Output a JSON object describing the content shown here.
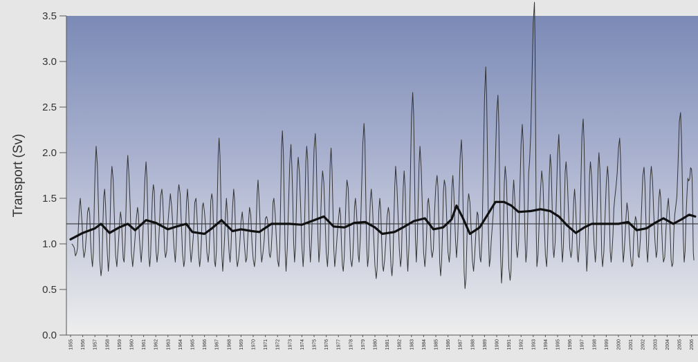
{
  "chart_data": {
    "type": "line",
    "title": "",
    "xlabel": "",
    "ylabel": "Transport (Sv)",
    "ylim": [
      0,
      3.5
    ],
    "y_ticks": [
      "0.0",
      "0.5",
      "1.0",
      "1.5",
      "2.0",
      "2.5",
      "3.0",
      "3.5"
    ],
    "y_tick_values": [
      0,
      0.5,
      1.0,
      1.5,
      2.0,
      2.5,
      3.0,
      3.5
    ],
    "x_ticks": [
      "1955",
      "1956",
      "1957",
      "1958",
      "1959",
      "1960",
      "1961",
      "1962",
      "1963",
      "1964",
      "1965",
      "1966",
      "1967",
      "1968",
      "1969",
      "1970",
      "1971",
      "1972",
      "1973",
      "1974",
      "1975",
      "1976",
      "1977",
      "1978",
      "1979",
      "1980",
      "1981",
      "1982",
      "1983",
      "1984",
      "1985",
      "1986",
      "1987",
      "1988",
      "1989",
      "1990",
      "1991",
      "1992",
      "1993",
      "1994",
      "1995",
      "1996",
      "1997",
      "1998",
      "1999",
      "2000",
      "2001",
      "2002",
      "2003",
      "2004",
      "2005",
      "2006"
    ],
    "xlim": [
      1955,
      2006
    ],
    "grid": false,
    "background": {
      "top_color": "#7b8ab6",
      "bottom_color": "#eeeeee"
    },
    "mean_line": {
      "value": 1.22,
      "color": "#222222"
    },
    "series": [
      {
        "style": "thin",
        "color": "#333333",
        "peaks": [
          {
            "x": 1955.1,
            "y": 1.0
          },
          {
            "x": 1955.5,
            "y": 0.9
          },
          {
            "x": 1955.8,
            "y": 1.5
          },
          {
            "x": 1956.1,
            "y": 0.85
          },
          {
            "x": 1956.5,
            "y": 1.4
          },
          {
            "x": 1956.8,
            "y": 0.75
          },
          {
            "x": 1957.1,
            "y": 2.07
          },
          {
            "x": 1957.5,
            "y": 0.65
          },
          {
            "x": 1957.8,
            "y": 1.6
          },
          {
            "x": 1958.1,
            "y": 0.7
          },
          {
            "x": 1958.4,
            "y": 1.85
          },
          {
            "x": 1958.8,
            "y": 0.75
          },
          {
            "x": 1959.1,
            "y": 1.35
          },
          {
            "x": 1959.4,
            "y": 0.8
          },
          {
            "x": 1959.7,
            "y": 1.97
          },
          {
            "x": 1960.1,
            "y": 0.75
          },
          {
            "x": 1960.5,
            "y": 1.4
          },
          {
            "x": 1960.8,
            "y": 0.8
          },
          {
            "x": 1961.2,
            "y": 1.9
          },
          {
            "x": 1961.5,
            "y": 0.75
          },
          {
            "x": 1961.8,
            "y": 1.65
          },
          {
            "x": 1962.1,
            "y": 0.8
          },
          {
            "x": 1962.5,
            "y": 1.6
          },
          {
            "x": 1962.8,
            "y": 0.85
          },
          {
            "x": 1963.2,
            "y": 1.55
          },
          {
            "x": 1963.6,
            "y": 0.8
          },
          {
            "x": 1963.9,
            "y": 1.65
          },
          {
            "x": 1964.3,
            "y": 0.75
          },
          {
            "x": 1964.6,
            "y": 1.6
          },
          {
            "x": 1964.9,
            "y": 0.8
          },
          {
            "x": 1965.3,
            "y": 1.5
          },
          {
            "x": 1965.6,
            "y": 0.75
          },
          {
            "x": 1965.9,
            "y": 1.45
          },
          {
            "x": 1966.3,
            "y": 0.8
          },
          {
            "x": 1966.6,
            "y": 1.55
          },
          {
            "x": 1966.9,
            "y": 0.75
          },
          {
            "x": 1967.2,
            "y": 2.16
          },
          {
            "x": 1967.5,
            "y": 0.7
          },
          {
            "x": 1967.8,
            "y": 1.5
          },
          {
            "x": 1968.1,
            "y": 0.8
          },
          {
            "x": 1968.4,
            "y": 1.6
          },
          {
            "x": 1968.7,
            "y": 0.75
          },
          {
            "x": 1969.1,
            "y": 1.35
          },
          {
            "x": 1969.4,
            "y": 0.8
          },
          {
            "x": 1969.7,
            "y": 1.4
          },
          {
            "x": 1970.1,
            "y": 0.75
          },
          {
            "x": 1970.4,
            "y": 1.7
          },
          {
            "x": 1970.7,
            "y": 0.8
          },
          {
            "x": 1971.1,
            "y": 1.3
          },
          {
            "x": 1971.4,
            "y": 0.85
          },
          {
            "x": 1971.7,
            "y": 1.5
          },
          {
            "x": 1972.1,
            "y": 0.75
          },
          {
            "x": 1972.4,
            "y": 2.24
          },
          {
            "x": 1972.7,
            "y": 0.7
          },
          {
            "x": 1973.1,
            "y": 2.09
          },
          {
            "x": 1973.4,
            "y": 0.8
          },
          {
            "x": 1973.7,
            "y": 1.95
          },
          {
            "x": 1974.1,
            "y": 0.75
          },
          {
            "x": 1974.4,
            "y": 2.07
          },
          {
            "x": 1974.7,
            "y": 0.8
          },
          {
            "x": 1975.1,
            "y": 2.21
          },
          {
            "x": 1975.4,
            "y": 0.8
          },
          {
            "x": 1975.7,
            "y": 1.8
          },
          {
            "x": 1976.1,
            "y": 0.75
          },
          {
            "x": 1976.4,
            "y": 2.05
          },
          {
            "x": 1976.7,
            "y": 0.75
          },
          {
            "x": 1977.1,
            "y": 1.4
          },
          {
            "x": 1977.4,
            "y": 0.7
          },
          {
            "x": 1977.7,
            "y": 1.7
          },
          {
            "x": 1978.1,
            "y": 0.75
          },
          {
            "x": 1978.4,
            "y": 1.5
          },
          {
            "x": 1978.7,
            "y": 0.8
          },
          {
            "x": 1979.1,
            "y": 2.32
          },
          {
            "x": 1979.4,
            "y": 0.75
          },
          {
            "x": 1979.7,
            "y": 1.6
          },
          {
            "x": 1980.1,
            "y": 0.62
          },
          {
            "x": 1980.4,
            "y": 1.5
          },
          {
            "x": 1980.7,
            "y": 0.7
          },
          {
            "x": 1981.1,
            "y": 1.4
          },
          {
            "x": 1981.4,
            "y": 0.65
          },
          {
            "x": 1981.7,
            "y": 1.85
          },
          {
            "x": 1982.1,
            "y": 0.75
          },
          {
            "x": 1982.4,
            "y": 1.8
          },
          {
            "x": 1982.7,
            "y": 0.7
          },
          {
            "x": 1983.1,
            "y": 2.66
          },
          {
            "x": 1983.4,
            "y": 0.8
          },
          {
            "x": 1983.7,
            "y": 2.07
          },
          {
            "x": 1984.1,
            "y": 0.75
          },
          {
            "x": 1984.4,
            "y": 1.5
          },
          {
            "x": 1984.7,
            "y": 0.85
          },
          {
            "x": 1985.1,
            "y": 1.75
          },
          {
            "x": 1985.4,
            "y": 0.65
          },
          {
            "x": 1985.7,
            "y": 1.7
          },
          {
            "x": 1986.1,
            "y": 0.8
          },
          {
            "x": 1986.4,
            "y": 1.75
          },
          {
            "x": 1986.7,
            "y": 0.85
          },
          {
            "x": 1987.1,
            "y": 2.14
          },
          {
            "x": 1987.4,
            "y": 0.51
          },
          {
            "x": 1987.7,
            "y": 1.55
          },
          {
            "x": 1988.1,
            "y": 0.7
          },
          {
            "x": 1988.4,
            "y": 1.35
          },
          {
            "x": 1988.7,
            "y": 0.8
          },
          {
            "x": 1989.1,
            "y": 2.94
          },
          {
            "x": 1989.4,
            "y": 0.75
          },
          {
            "x": 1989.7,
            "y": 1.3
          },
          {
            "x": 1990.1,
            "y": 2.63
          },
          {
            "x": 1990.4,
            "y": 0.57
          },
          {
            "x": 1990.7,
            "y": 1.85
          },
          {
            "x": 1991.1,
            "y": 0.6
          },
          {
            "x": 1991.4,
            "y": 1.7
          },
          {
            "x": 1991.7,
            "y": 0.85
          },
          {
            "x": 1992.1,
            "y": 2.31
          },
          {
            "x": 1992.4,
            "y": 0.8
          },
          {
            "x": 1992.7,
            "y": 1.9
          },
          {
            "x": 1993.1,
            "y": 3.65
          },
          {
            "x": 1993.3,
            "y": 0.75
          },
          {
            "x": 1993.7,
            "y": 1.8
          },
          {
            "x": 1994.1,
            "y": 0.75
          },
          {
            "x": 1994.4,
            "y": 1.98
          },
          {
            "x": 1994.7,
            "y": 0.85
          },
          {
            "x": 1995.1,
            "y": 2.2
          },
          {
            "x": 1995.4,
            "y": 0.8
          },
          {
            "x": 1995.7,
            "y": 1.9
          },
          {
            "x": 1996.1,
            "y": 0.85
          },
          {
            "x": 1996.4,
            "y": 1.6
          },
          {
            "x": 1996.7,
            "y": 0.8
          },
          {
            "x": 1997.1,
            "y": 2.37
          },
          {
            "x": 1997.4,
            "y": 0.7
          },
          {
            "x": 1997.7,
            "y": 1.9
          },
          {
            "x": 1998.1,
            "y": 0.8
          },
          {
            "x": 1998.4,
            "y": 2.0
          },
          {
            "x": 1998.7,
            "y": 0.75
          },
          {
            "x": 1999.1,
            "y": 1.85
          },
          {
            "x": 1999.4,
            "y": 0.8
          },
          {
            "x": 1999.7,
            "y": 1.5
          },
          {
            "x": 2000.1,
            "y": 2.16
          },
          {
            "x": 2000.4,
            "y": 0.8
          },
          {
            "x": 2000.7,
            "y": 1.45
          },
          {
            "x": 2001.1,
            "y": 0.75
          },
          {
            "x": 2001.4,
            "y": 1.3
          },
          {
            "x": 2001.7,
            "y": 0.85
          },
          {
            "x": 2002.1,
            "y": 1.84
          },
          {
            "x": 2002.4,
            "y": 0.8
          },
          {
            "x": 2002.7,
            "y": 1.85
          },
          {
            "x": 2003.1,
            "y": 0.85
          },
          {
            "x": 2003.4,
            "y": 1.6
          },
          {
            "x": 2003.7,
            "y": 0.8
          },
          {
            "x": 2004.1,
            "y": 1.5
          },
          {
            "x": 2004.4,
            "y": 0.75
          },
          {
            "x": 2004.7,
            "y": 1.4
          },
          {
            "x": 2005.1,
            "y": 2.44
          },
          {
            "x": 2005.4,
            "y": 0.8
          },
          {
            "x": 2005.7,
            "y": 1.72
          },
          {
            "x": 2006.0,
            "y": 1.82
          },
          {
            "x": 2006.2,
            "y": 0.82
          }
        ]
      },
      {
        "style": "thick",
        "color": "#111111",
        "points": [
          {
            "x": 1955.0,
            "y": 1.05
          },
          {
            "x": 1956.0,
            "y": 1.12
          },
          {
            "x": 1957.0,
            "y": 1.17
          },
          {
            "x": 1957.5,
            "y": 1.22
          },
          {
            "x": 1958.2,
            "y": 1.12
          },
          {
            "x": 1959.0,
            "y": 1.18
          },
          {
            "x": 1959.7,
            "y": 1.22
          },
          {
            "x": 1960.3,
            "y": 1.15
          },
          {
            "x": 1961.2,
            "y": 1.26
          },
          {
            "x": 1962.0,
            "y": 1.23
          },
          {
            "x": 1963.0,
            "y": 1.16
          },
          {
            "x": 1963.7,
            "y": 1.19
          },
          {
            "x": 1964.5,
            "y": 1.22
          },
          {
            "x": 1965.0,
            "y": 1.13
          },
          {
            "x": 1966.0,
            "y": 1.11
          },
          {
            "x": 1966.6,
            "y": 1.17
          },
          {
            "x": 1967.4,
            "y": 1.26
          },
          {
            "x": 1968.3,
            "y": 1.14
          },
          {
            "x": 1969.0,
            "y": 1.16
          },
          {
            "x": 1969.9,
            "y": 1.14
          },
          {
            "x": 1970.5,
            "y": 1.13
          },
          {
            "x": 1971.5,
            "y": 1.22
          },
          {
            "x": 1973.0,
            "y": 1.22
          },
          {
            "x": 1974.0,
            "y": 1.21
          },
          {
            "x": 1975.0,
            "y": 1.26
          },
          {
            "x": 1975.8,
            "y": 1.3
          },
          {
            "x": 1976.6,
            "y": 1.19
          },
          {
            "x": 1977.5,
            "y": 1.18
          },
          {
            "x": 1978.3,
            "y": 1.23
          },
          {
            "x": 1979.2,
            "y": 1.24
          },
          {
            "x": 1980.0,
            "y": 1.18
          },
          {
            "x": 1980.6,
            "y": 1.11
          },
          {
            "x": 1981.6,
            "y": 1.13
          },
          {
            "x": 1982.3,
            "y": 1.18
          },
          {
            "x": 1983.2,
            "y": 1.25
          },
          {
            "x": 1984.1,
            "y": 1.28
          },
          {
            "x": 1984.8,
            "y": 1.16
          },
          {
            "x": 1985.6,
            "y": 1.18
          },
          {
            "x": 1986.3,
            "y": 1.27
          },
          {
            "x": 1986.7,
            "y": 1.42
          },
          {
            "x": 1987.2,
            "y": 1.29
          },
          {
            "x": 1987.8,
            "y": 1.11
          },
          {
            "x": 1988.6,
            "y": 1.18
          },
          {
            "x": 1989.3,
            "y": 1.33
          },
          {
            "x": 1989.9,
            "y": 1.46
          },
          {
            "x": 1990.6,
            "y": 1.46
          },
          {
            "x": 1991.2,
            "y": 1.42
          },
          {
            "x": 1991.8,
            "y": 1.35
          },
          {
            "x": 1992.8,
            "y": 1.36
          },
          {
            "x": 1993.6,
            "y": 1.38
          },
          {
            "x": 1994.4,
            "y": 1.36
          },
          {
            "x": 1995.1,
            "y": 1.3
          },
          {
            "x": 1995.8,
            "y": 1.2
          },
          {
            "x": 1996.5,
            "y": 1.12
          },
          {
            "x": 1997.2,
            "y": 1.18
          },
          {
            "x": 1997.8,
            "y": 1.22
          },
          {
            "x": 1999.0,
            "y": 1.22
          },
          {
            "x": 2000.0,
            "y": 1.22
          },
          {
            "x": 2000.8,
            "y": 1.24
          },
          {
            "x": 2001.5,
            "y": 1.15
          },
          {
            "x": 2002.3,
            "y": 1.17
          },
          {
            "x": 2003.0,
            "y": 1.23
          },
          {
            "x": 2003.7,
            "y": 1.28
          },
          {
            "x": 2004.5,
            "y": 1.22
          },
          {
            "x": 2005.2,
            "y": 1.27
          },
          {
            "x": 2005.8,
            "y": 1.32
          },
          {
            "x": 2006.3,
            "y": 1.3
          }
        ]
      }
    ]
  }
}
